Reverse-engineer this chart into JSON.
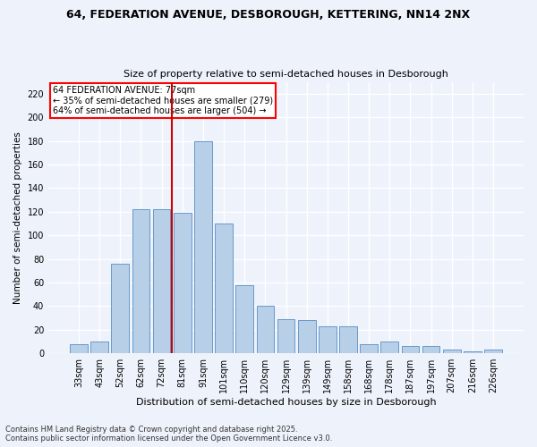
{
  "title1": "64, FEDERATION AVENUE, DESBOROUGH, KETTERING, NN14 2NX",
  "title2": "Size of property relative to semi-detached houses in Desborough",
  "xlabel": "Distribution of semi-detached houses by size in Desborough",
  "ylabel": "Number of semi-detached properties",
  "categories": [
    "33sqm",
    "43sqm",
    "52sqm",
    "62sqm",
    "72sqm",
    "81sqm",
    "91sqm",
    "101sqm",
    "110sqm",
    "120sqm",
    "129sqm",
    "139sqm",
    "149sqm",
    "158sqm",
    "168sqm",
    "178sqm",
    "187sqm",
    "197sqm",
    "207sqm",
    "216sqm",
    "226sqm"
  ],
  "bar_values": [
    8,
    10,
    76,
    122,
    122,
    119,
    180,
    110,
    58,
    40,
    29,
    28,
    23,
    23,
    8,
    10,
    6,
    6,
    3,
    2,
    3
  ],
  "annotation_title": "64 FEDERATION AVENUE: 77sqm",
  "annotation_line1": "← 35% of semi-detached houses are smaller (279)",
  "annotation_line2": "64% of semi-detached houses are larger (504) →",
  "bar_color": "#b8cfe8",
  "bar_edge_color": "#6699cc",
  "vline_color": "#cc0000",
  "background_color": "#eef2fb",
  "grid_color": "#ffffff",
  "footer1": "Contains HM Land Registry data © Crown copyright and database right 2025.",
  "footer2": "Contains public sector information licensed under the Open Government Licence v3.0.",
  "ylim": [
    0,
    230
  ],
  "yticks": [
    0,
    20,
    40,
    60,
    80,
    100,
    120,
    140,
    160,
    180,
    200,
    220
  ]
}
